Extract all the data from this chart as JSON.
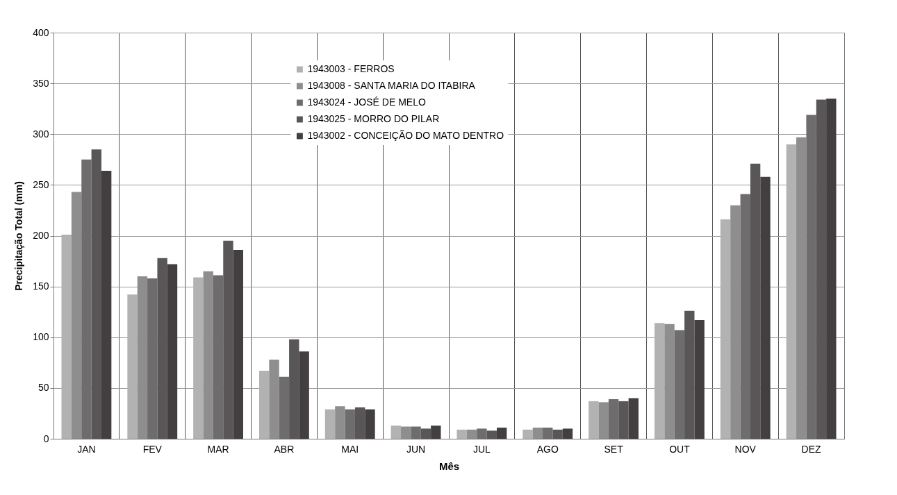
{
  "chart_data": {
    "type": "bar",
    "xlabel": "Mês",
    "ylabel": "Precipitação Total (mm)",
    "categories": [
      "JAN",
      "FEV",
      "MAR",
      "ABR",
      "MAI",
      "JUN",
      "JUL",
      "AGO",
      "SET",
      "OUT",
      "NOV",
      "DEZ"
    ],
    "series": [
      {
        "name": "1943003 - FERROS",
        "color": "#b2b2b2",
        "values": [
          201,
          142,
          159,
          67,
          29,
          13,
          9,
          9,
          37,
          114,
          216,
          290
        ]
      },
      {
        "name": "1943008 - SANTA MARIA DO ITABIRA",
        "color": "#8e8e8e",
        "values": [
          243,
          160,
          165,
          78,
          32,
          12,
          9,
          11,
          36,
          113,
          230,
          297
        ]
      },
      {
        "name": "1943024 - JOSÉ DE MELO",
        "color": "#6e6c6d",
        "values": [
          275,
          158,
          161,
          61,
          29,
          12,
          10,
          11,
          39,
          107,
          241,
          319
        ]
      },
      {
        "name": "1943025 - MORRO DO PILAR",
        "color": "#585657",
        "values": [
          285,
          178,
          195,
          98,
          31,
          10,
          8,
          9,
          37,
          126,
          271,
          334
        ]
      },
      {
        "name": "1943002 - CONCEIÇÃO DO MATO DENTRO",
        "color": "#433f40",
        "values": [
          264,
          172,
          186,
          86,
          29,
          13,
          11,
          10,
          40,
          117,
          258,
          335
        ]
      }
    ],
    "ylim": [
      0,
      400
    ],
    "yticks": [
      0,
      50,
      100,
      150,
      200,
      250,
      300,
      350,
      400
    ],
    "grid": true,
    "legend": "top"
  }
}
